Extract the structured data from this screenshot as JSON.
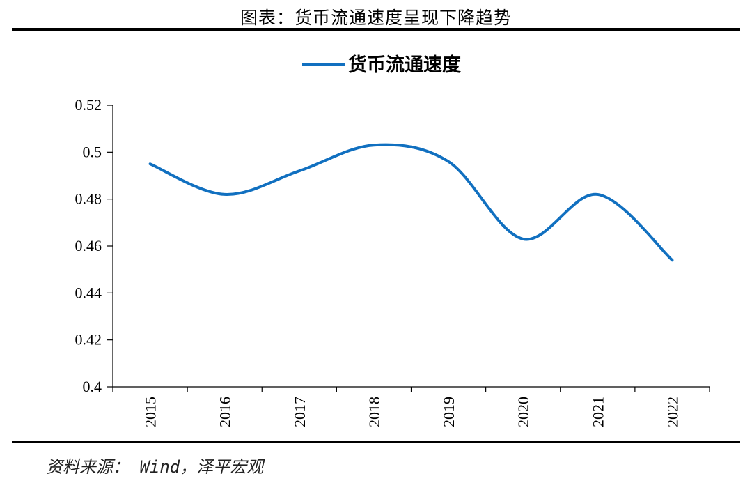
{
  "page": {
    "title": "图表：货币流通速度呈现下降趋势",
    "source": "资料来源： Wind，泽平宏观"
  },
  "chart_data": {
    "type": "line",
    "title": "",
    "xlabel": "",
    "ylabel": "",
    "categories": [
      "2015",
      "2016",
      "2017",
      "2018",
      "2019",
      "2020",
      "2021",
      "2022"
    ],
    "series": [
      {
        "name": "货币流通速度",
        "color": "#1170C0",
        "values": [
          0.495,
          0.482,
          0.492,
          0.503,
          0.496,
          0.463,
          0.482,
          0.454
        ]
      }
    ],
    "ylim": [
      0.4,
      0.52
    ],
    "yticks": [
      0.4,
      0.42,
      0.44,
      0.46,
      0.48,
      0.5,
      0.52
    ],
    "ytick_labels": [
      "0.4",
      "0.42",
      "0.44",
      "0.46",
      "0.48",
      "0.5",
      "0.52"
    ],
    "legend_position": "top-center",
    "grid": false,
    "smooth": true
  }
}
